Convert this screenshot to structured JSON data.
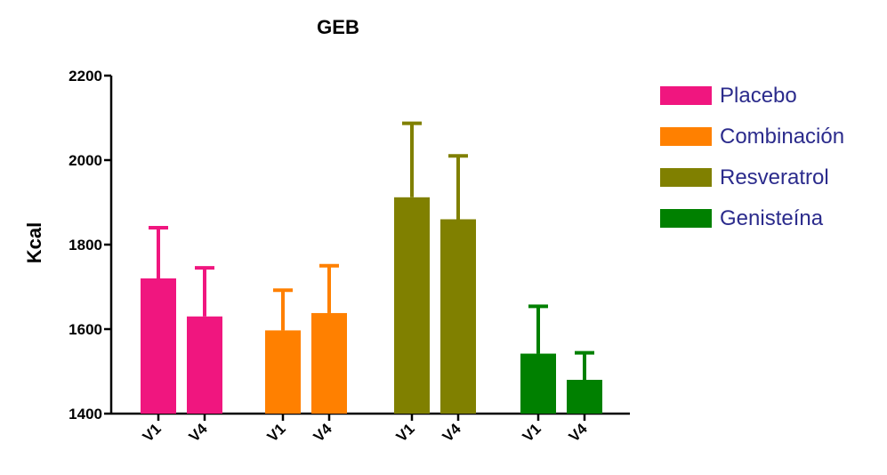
{
  "chart_data": {
    "type": "bar",
    "title": "GEB",
    "xlabel": "",
    "ylabel": "Kcal",
    "ylim": [
      1400,
      2200
    ],
    "yticks": [
      "1400",
      "1600",
      "1800",
      "2000",
      "2200"
    ],
    "grid": false,
    "legend_position": "right",
    "groups": [
      {
        "name": "Placebo",
        "color": "#f0167f",
        "bars": [
          {
            "label": "V1",
            "value": 1720,
            "error": 120
          },
          {
            "label": "V4",
            "value": 1630,
            "error": 115
          }
        ]
      },
      {
        "name": "Combinación",
        "color": "#ff8000",
        "bars": [
          {
            "label": "V1",
            "value": 1597,
            "error": 95
          },
          {
            "label": "V4",
            "value": 1638,
            "error": 112
          }
        ]
      },
      {
        "name": "Resveratrol",
        "color": "#808000",
        "bars": [
          {
            "label": "V1",
            "value": 1912,
            "error": 175
          },
          {
            "label": "V4",
            "value": 1860,
            "error": 150
          }
        ]
      },
      {
        "name": "Genisteína",
        "color": "#008000",
        "bars": [
          {
            "label": "V1",
            "value": 1542,
            "error": 112
          },
          {
            "label": "V4",
            "value": 1480,
            "error": 64
          }
        ]
      }
    ]
  }
}
